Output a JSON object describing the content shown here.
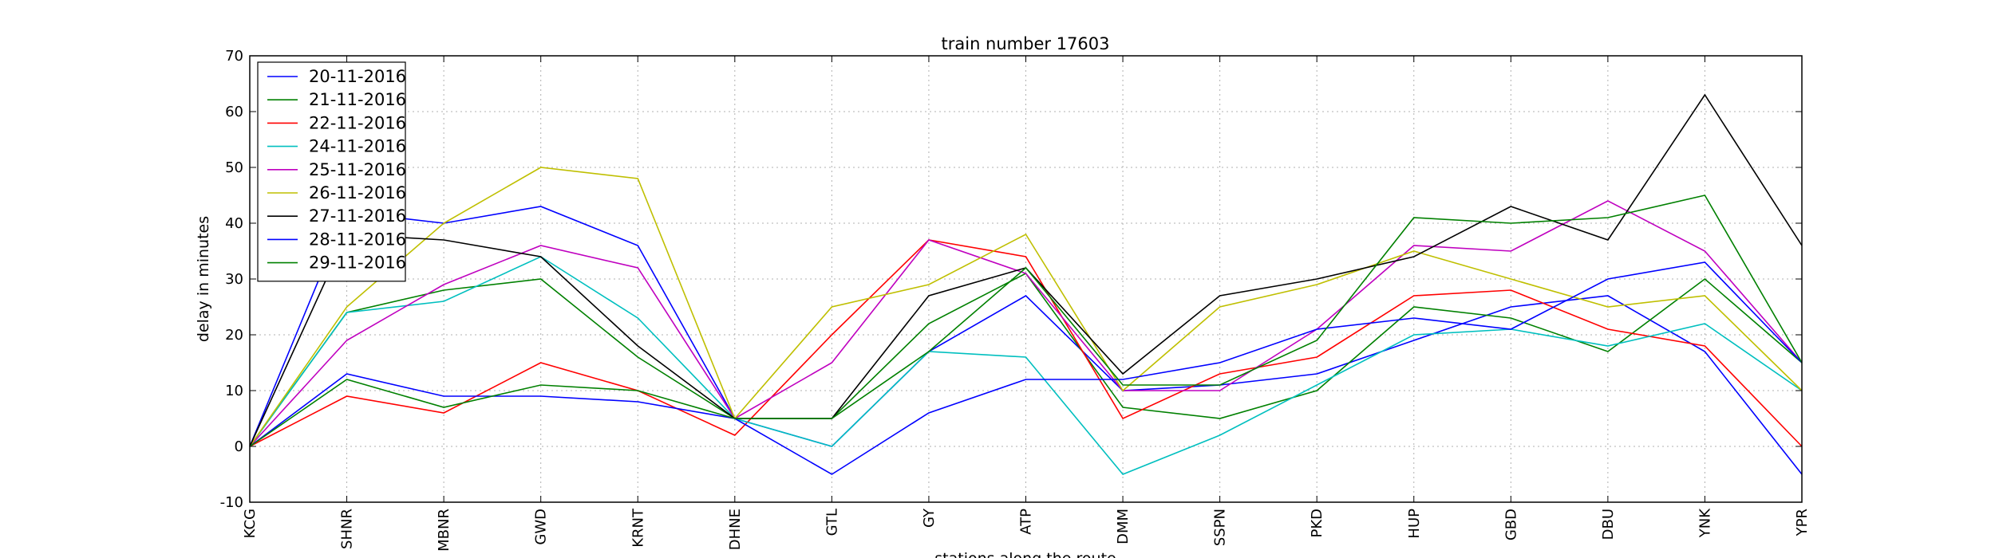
{
  "chart_data": {
    "type": "line",
    "title": "train number 17603",
    "xlabel": "stations along the route",
    "ylabel": "delay in minutes",
    "ylim": [
      -10,
      70
    ],
    "yticks": [
      -10,
      0,
      10,
      20,
      30,
      40,
      50,
      60,
      70
    ],
    "grid": true,
    "legend_position": "top-left",
    "categories": [
      "KCG",
      "SHNR",
      "MBNR",
      "GWD",
      "KRNT",
      "DHNE",
      "GTL",
      "GY",
      "ATP",
      "DMM",
      "SSPN",
      "PKD",
      "HUP",
      "GBD",
      "DBU",
      "YNK",
      "YPR"
    ],
    "series": [
      {
        "name": "20-11-2016",
        "color": "#0000ff",
        "values": [
          0,
          42,
          40,
          43,
          36,
          5,
          0,
          17,
          27,
          10,
          11,
          13,
          19,
          25,
          27,
          17,
          -5
        ]
      },
      {
        "name": "21-11-2016",
        "color": "#008000",
        "values": [
          0,
          24,
          28,
          30,
          16,
          5,
          5,
          22,
          31,
          7,
          5,
          10,
          25,
          23,
          17,
          30,
          15
        ]
      },
      {
        "name": "22-11-2016",
        "color": "#ff0000",
        "values": [
          0,
          9,
          6,
          15,
          10,
          2,
          20,
          37,
          34,
          5,
          13,
          16,
          27,
          28,
          21,
          18,
          0
        ]
      },
      {
        "name": "24-11-2016",
        "color": "#00bfbf",
        "values": [
          0,
          24,
          26,
          34,
          23,
          5,
          0,
          17,
          16,
          -5,
          2,
          11,
          20,
          21,
          18,
          22,
          10
        ]
      },
      {
        "name": "25-11-2016",
        "color": "#bf00bf",
        "values": [
          0,
          19,
          29,
          36,
          32,
          5,
          15,
          37,
          31,
          10,
          10,
          21,
          36,
          35,
          44,
          35,
          15
        ]
      },
      {
        "name": "26-11-2016",
        "color": "#bfbf00",
        "values": [
          0,
          25,
          40,
          50,
          48,
          5,
          25,
          29,
          38,
          10,
          25,
          29,
          35,
          30,
          25,
          27,
          10
        ]
      },
      {
        "name": "27-11-2016",
        "color": "#000000",
        "values": [
          0,
          38,
          37,
          34,
          18,
          5,
          5,
          27,
          32,
          13,
          27,
          30,
          34,
          43,
          37,
          63,
          36
        ]
      },
      {
        "name": "28-11-2016",
        "color": "#0000ff",
        "values": [
          0,
          13,
          9,
          9,
          8,
          5,
          -5,
          6,
          12,
          12,
          15,
          21,
          23,
          21,
          30,
          33,
          15
        ]
      },
      {
        "name": "29-11-2016",
        "color": "#008000",
        "values": [
          0,
          12,
          7,
          11,
          10,
          5,
          5,
          17,
          32,
          11,
          11,
          19,
          41,
          40,
          41,
          45,
          15
        ]
      }
    ]
  }
}
